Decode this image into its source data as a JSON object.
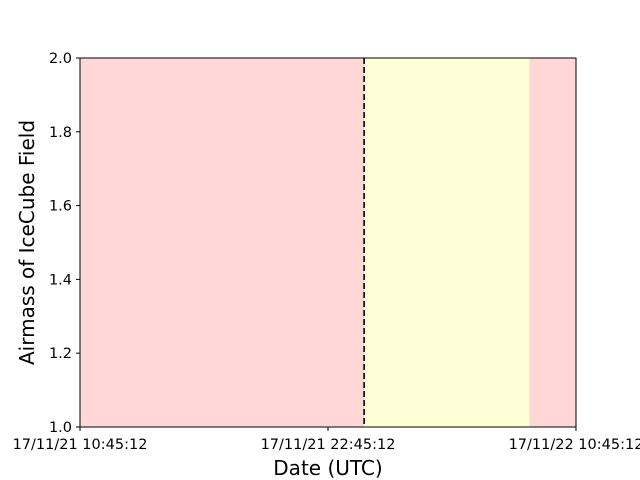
{
  "chart_data": {
    "type": "area",
    "title": "",
    "xlabel": "Date (UTC)",
    "ylabel": "Airmass of IceCube Field",
    "ylim": [
      1.0,
      2.0
    ],
    "yticks": [
      1.0,
      1.2,
      1.4,
      1.6,
      1.8,
      2.0
    ],
    "ytick_labels": [
      "1.0",
      "1.2",
      "1.4",
      "1.6",
      "1.8",
      "2.0"
    ],
    "xlim": [
      "2017-11-21T10:45:12Z",
      "2017-11-22T10:45:12Z"
    ],
    "xticks": [
      "2017-11-21T10:45:12Z",
      "2017-11-21T22:45:12Z",
      "2017-11-22T10:45:12Z"
    ],
    "xtick_labels": [
      "17/11/21 10:45:12",
      "17/11/21 22:45:12",
      "17/11/22 10:45:12"
    ],
    "grid": false,
    "shaded_regions": [
      {
        "start": "2017-11-21T10:45:12Z",
        "end": "2017-11-22T08:30:00Z",
        "color": "#ffd7d7"
      },
      {
        "start": "2017-11-22T08:30:00Z",
        "end": "2017-11-22T10:45:12Z",
        "color": "#ffd7d7"
      },
      {
        "start": "2017-11-22T00:30:00Z",
        "end": "2017-11-22T08:30:00Z",
        "color": "#ffffd7"
      }
    ],
    "vertical_lines": [
      {
        "x": "2017-11-22T00:30:00Z",
        "style": "dashed",
        "color": "#000000"
      }
    ]
  }
}
